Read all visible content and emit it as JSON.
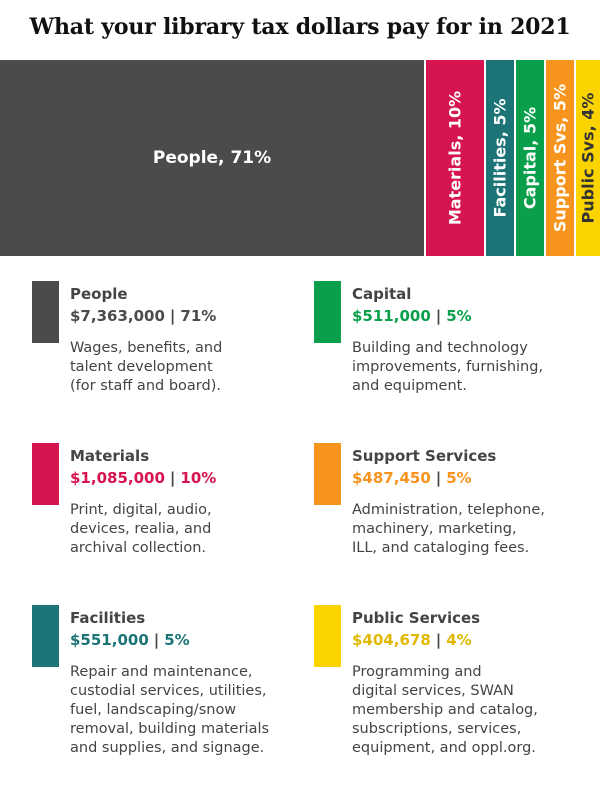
{
  "title": "What your library tax dollars pay for in 2021",
  "chart_data": {
    "type": "treemap",
    "title": "What your library tax dollars pay for in 2021",
    "segments": [
      {
        "label": "People, 71%",
        "percent": 71,
        "color": "#4a4b4d",
        "text_color": "#ffffff",
        "orientation": "horizontal"
      },
      {
        "label": "Materials, 10%",
        "percent": 10,
        "color": "#d6144f",
        "text_color": "#ffffff",
        "orientation": "vertical"
      },
      {
        "label": "Facilities, 5%",
        "percent": 5,
        "color": "#1c7476",
        "text_color": "#ffffff",
        "orientation": "vertical"
      },
      {
        "label": "Capital, 5%",
        "percent": 5,
        "color": "#0aa04b",
        "text_color": "#ffffff",
        "orientation": "vertical"
      },
      {
        "label": "Support Svs, 5%",
        "percent": 5,
        "color": "#f7941d",
        "text_color": "#ffffff",
        "orientation": "vertical"
      },
      {
        "label": "Public Svs, 4%",
        "percent": 4,
        "color": "#fbd400",
        "text_color": "#333333",
        "orientation": "vertical"
      }
    ]
  },
  "legend": [
    {
      "name": "People",
      "amount": "$7,363,000",
      "percent": "71%",
      "color": "#4a4b4d",
      "text_color": "#4a4b4d",
      "description": "Wages, benefits, and\ntalent development\n(for staff and board)."
    },
    {
      "name": "Capital",
      "amount": "$511,000",
      "percent": "5%",
      "color": "#0aa04b",
      "text_color": "#0aa04b",
      "description": "Building and technology\nimprovements, furnishing,\nand equipment."
    },
    {
      "name": "Materials",
      "amount": "$1,085,000",
      "percent": "10%",
      "color": "#d6144f",
      "text_color": "#d6144f",
      "description": "Print, digital, audio,\ndevices, realia, and\narchival collection."
    },
    {
      "name": "Support Services",
      "amount": "$487,450",
      "percent": "5%",
      "color": "#f7941d",
      "text_color": "#f7941d",
      "description": "Administration, telephone,\nmachinery, marketing,\nILL, and cataloging fees."
    },
    {
      "name": "Facilities",
      "amount": "$551,000",
      "percent": "5%",
      "color": "#1c7476",
      "text_color": "#1c7476",
      "description": "Repair and maintenance,\ncustodial services, utilities,\nfuel, landscaping/snow\nremoval, building materials\nand supplies, and signage."
    },
    {
      "name": "Public Services",
      "amount": "$404,678",
      "percent": "4%",
      "color": "#fbd400",
      "text_color": "#e0b800",
      "description": "Programming and\ndigital services, SWAN\nmembership and catalog,\nsubscriptions, services,\nequipment, and oppl.org."
    }
  ],
  "amount_separator": "|"
}
